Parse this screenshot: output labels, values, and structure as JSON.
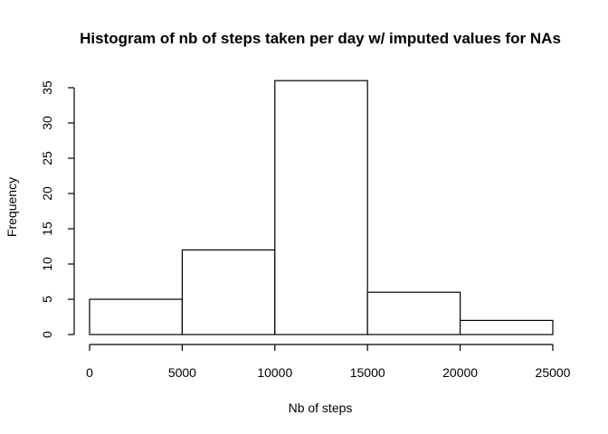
{
  "chart_data": {
    "type": "bar",
    "title": "Histogram of nb of steps taken per day w/ imputed values for NAs",
    "xlabel": "Nb of steps",
    "ylabel": "Frequency",
    "bins": [
      {
        "from": 0,
        "to": 5000,
        "value": 5
      },
      {
        "from": 5000,
        "to": 10000,
        "value": 12
      },
      {
        "from": 10000,
        "to": 15000,
        "value": 36
      },
      {
        "from": 15000,
        "to": 20000,
        "value": 6
      },
      {
        "from": 20000,
        "to": 25000,
        "value": 2
      }
    ],
    "xlim": [
      0,
      25000
    ],
    "ylim": [
      0,
      35
    ],
    "xticks": [
      0,
      5000,
      10000,
      15000,
      20000,
      25000
    ],
    "xtick_labels": [
      "0",
      "5000",
      "10000",
      "15000",
      "20000",
      "25000"
    ],
    "yticks": [
      0,
      5,
      10,
      15,
      20,
      25,
      30,
      35
    ],
    "ytick_labels": [
      "0",
      "5",
      "10",
      "15",
      "20",
      "25",
      "30",
      "35"
    ],
    "grid": false,
    "colors": {
      "bar_fill": "#ffffff",
      "bar_stroke": "#000000"
    }
  }
}
